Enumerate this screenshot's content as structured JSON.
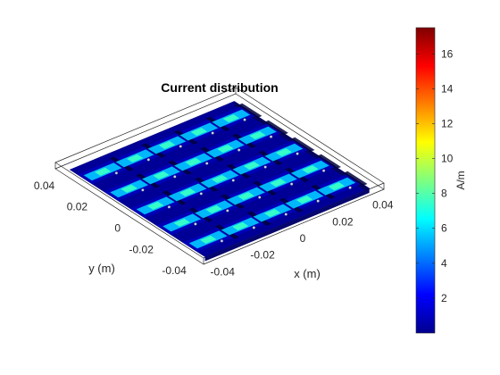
{
  "chart_data": {
    "type": "heatmap",
    "title": "Current distribution",
    "xlabel": "x (m)",
    "ylabel": "y (m)",
    "colorbar_label": "A/m",
    "colormap": "jet",
    "clim": [
      0,
      17.5
    ],
    "xlim": [
      -0.045,
      0.045
    ],
    "ylim": [
      -0.045,
      0.045
    ],
    "x_ticks": [
      -0.04,
      -0.02,
      0,
      0.02,
      0.04
    ],
    "x_tick_labels": [
      "-0.04",
      "-0.02",
      "0",
      "0.02",
      "0.04"
    ],
    "y_ticks": [
      -0.04,
      -0.02,
      0,
      0.02,
      0.04
    ],
    "y_tick_labels": [
      "-0.04",
      "-0.02",
      "0",
      "0.02",
      "0.04"
    ],
    "colorbar_ticks": [
      2,
      4,
      6,
      8,
      10,
      12,
      14,
      16
    ],
    "colorbar_tick_labels": [
      "2",
      "4",
      "6",
      "8",
      "10",
      "12",
      "14",
      "16"
    ],
    "grid": "off",
    "array_rows": 5,
    "array_cols": 5,
    "row_y_centers": [
      -0.032,
      -0.016,
      0,
      0.016,
      0.032
    ],
    "col_x_centers": [
      -0.032,
      -0.016,
      0,
      0.016,
      0.032
    ],
    "background_level": 0.4,
    "element_strip_level": 5.5,
    "element_feed_level": 7.5
  }
}
